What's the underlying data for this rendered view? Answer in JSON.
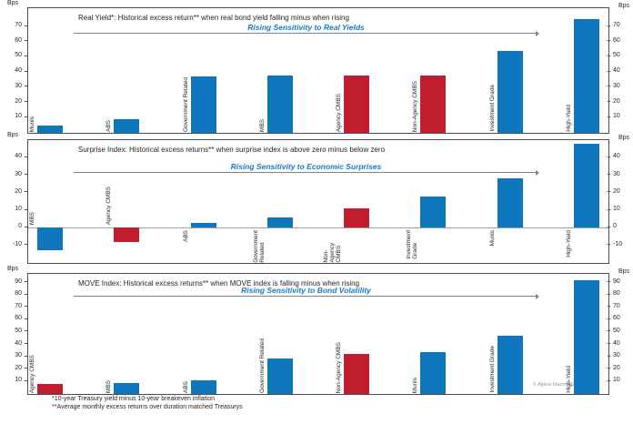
{
  "colors": {
    "blue": "#0e76bc",
    "red": "#be1e2d",
    "annotation_blue": "#1779c2",
    "axis_gray": "#4d4d4f",
    "arrow_gray": "#808285"
  },
  "footnotes": {
    "line1": "*10-year Treasury yield minus 10-year breakeven inflation",
    "line2": "**Average monthly excess returns over duration matched Treasurys"
  },
  "copyright": "© Alpine Macro 2025",
  "chart_data": [
    {
      "type": "bar",
      "title": "Real Yield*:  Historical excess return** when real bond yield falling minus when rising",
      "annotation": "Rising Sensitivity to Real Yields",
      "unit": "Bps",
      "ylim": [
        0,
        82
      ],
      "yticks": [
        10,
        20,
        30,
        40,
        50,
        60,
        70
      ],
      "grid": false,
      "legend": "none",
      "categories": [
        "Munis",
        "ABS",
        "Government Related",
        "MBS",
        "Agency CMBS",
        "Non-Agency CMBS",
        "Investment Grade",
        "High-Yield"
      ],
      "values": [
        5,
        9,
        37,
        38,
        38,
        38,
        54,
        75
      ],
      "bar_colors": [
        "blue",
        "blue",
        "blue",
        "blue",
        "red",
        "red",
        "blue",
        "blue"
      ]
    },
    {
      "type": "bar",
      "title": "Surprise Index: Historical excess returns** when surprise index is above zero minus below zero",
      "annotation": "Rising Sensitivity to Economic Surprises",
      "unit": "Bps",
      "ylim": [
        -20,
        50
      ],
      "yticks": [
        -10,
        0,
        10,
        20,
        30,
        40
      ],
      "grid": false,
      "legend": "none",
      "categories": [
        "MBS",
        "Agency CMBS",
        "ABS",
        "Government\nRelated",
        "Non-Agency\nCMBS",
        "Investment\nGrade",
        "Munis",
        "High-Yield"
      ],
      "values": [
        -13,
        -8,
        3,
        6,
        11,
        18,
        28,
        48
      ],
      "bar_colors": [
        "blue",
        "red",
        "blue",
        "blue",
        "red",
        "blue",
        "blue",
        "blue"
      ]
    },
    {
      "type": "bar",
      "title": "MOVE Index: Historical excess returns** when MOVE index is falling minus when rising",
      "annotation": "Rising Sensitivity to Bond Volatility",
      "unit": "Bps",
      "ylim": [
        0,
        97
      ],
      "yticks": [
        10,
        20,
        30,
        40,
        50,
        60,
        70,
        80,
        90
      ],
      "grid": false,
      "legend": "none",
      "categories": [
        "Agency CMBS",
        "MBS",
        "ABS",
        "Government Related",
        "Non-Agency CMBS",
        "Munis",
        "Investment Grade",
        "High-Yield"
      ],
      "values": [
        8,
        9,
        11,
        29,
        32,
        34,
        47,
        92
      ],
      "bar_colors": [
        "red",
        "blue",
        "blue",
        "blue",
        "red",
        "blue",
        "blue",
        "blue"
      ]
    }
  ]
}
